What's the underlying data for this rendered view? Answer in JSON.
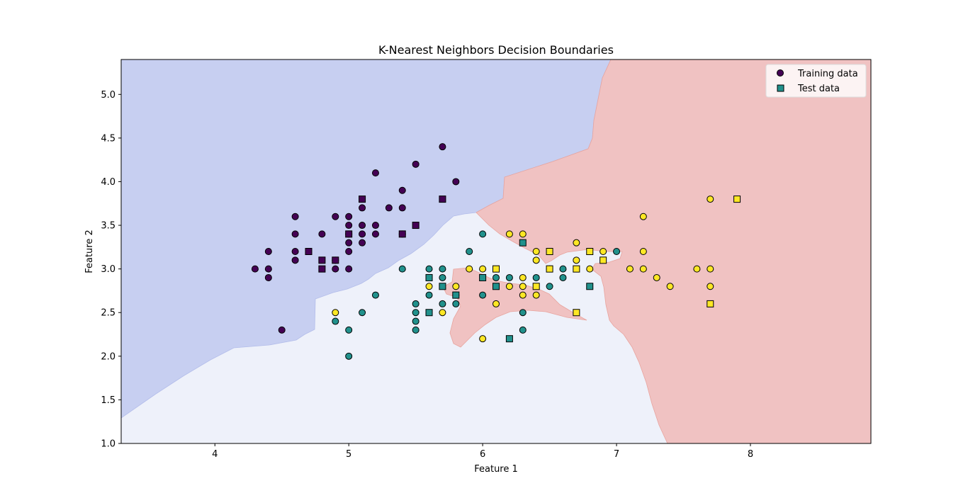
{
  "chart_data": {
    "type": "scatter",
    "title": "K-Nearest Neighbors Decision Boundaries",
    "xlabel": "Feature 1",
    "ylabel": "Feature 2",
    "xlim": [
      3.3,
      8.9
    ],
    "ylim": [
      1.0,
      5.4
    ],
    "xticks": [
      "4",
      "5",
      "6",
      "7",
      "8"
    ],
    "yticks": [
      "1.0",
      "1.5",
      "2.0",
      "2.5",
      "3.0",
      "3.5",
      "4.0",
      "4.5",
      "5.0"
    ],
    "grid": false,
    "legend_position": "upper-right",
    "class_colors": [
      "#440154",
      "#21918c",
      "#fde725"
    ],
    "region_colors": [
      "#c7cff1",
      "#eef1fa",
      "#f0c2c2"
    ],
    "legend": [
      {
        "label": "Training data",
        "marker": "circle",
        "color": "#440154"
      },
      {
        "label": "Test data",
        "marker": "square",
        "color": "#21918c"
      }
    ],
    "series": [
      {
        "name": "Training data",
        "marker": "circle",
        "points": [
          [
            4.3,
            3.0,
            0
          ],
          [
            4.4,
            3.2,
            0
          ],
          [
            4.4,
            3.0,
            0
          ],
          [
            4.4,
            2.9,
            0
          ],
          [
            4.5,
            2.3,
            0
          ],
          [
            4.6,
            3.6,
            0
          ],
          [
            4.6,
            3.4,
            0
          ],
          [
            4.6,
            3.2,
            0
          ],
          [
            4.6,
            3.1,
            0
          ],
          [
            4.8,
            3.4,
            0
          ],
          [
            4.9,
            3.6,
            0
          ],
          [
            4.9,
            3.1,
            0
          ],
          [
            4.9,
            3.0,
            0
          ],
          [
            5.0,
            3.6,
            0
          ],
          [
            5.0,
            3.5,
            0
          ],
          [
            5.0,
            3.4,
            0
          ],
          [
            5.0,
            3.3,
            0
          ],
          [
            5.0,
            3.2,
            0
          ],
          [
            5.0,
            3.0,
            0
          ],
          [
            5.1,
            3.7,
            0
          ],
          [
            5.1,
            3.5,
            0
          ],
          [
            5.1,
            3.4,
            0
          ],
          [
            5.1,
            3.3,
            0
          ],
          [
            5.2,
            4.1,
            0
          ],
          [
            5.2,
            3.5,
            0
          ],
          [
            5.2,
            3.4,
            0
          ],
          [
            5.3,
            3.7,
            0
          ],
          [
            5.4,
            3.9,
            0
          ],
          [
            5.4,
            3.7,
            0
          ],
          [
            5.4,
            3.4,
            0
          ],
          [
            5.5,
            4.2,
            0
          ],
          [
            5.7,
            4.4,
            0
          ],
          [
            5.8,
            4.0,
            0
          ],
          [
            4.9,
            2.4,
            1
          ],
          [
            5.0,
            2.3,
            1
          ],
          [
            5.0,
            2.0,
            1
          ],
          [
            5.1,
            2.5,
            1
          ],
          [
            5.2,
            2.7,
            1
          ],
          [
            5.4,
            3.0,
            1
          ],
          [
            5.5,
            2.6,
            1
          ],
          [
            5.5,
            2.5,
            1
          ],
          [
            5.5,
            2.4,
            1
          ],
          [
            5.5,
            2.3,
            1
          ],
          [
            5.6,
            3.0,
            1
          ],
          [
            5.6,
            2.7,
            1
          ],
          [
            5.7,
            3.0,
            1
          ],
          [
            5.7,
            2.9,
            1
          ],
          [
            5.7,
            2.6,
            1
          ],
          [
            5.8,
            2.7,
            1
          ],
          [
            5.8,
            2.6,
            1
          ],
          [
            5.9,
            3.2,
            1
          ],
          [
            6.0,
            3.4,
            1
          ],
          [
            6.0,
            2.7,
            1
          ],
          [
            6.1,
            2.9,
            1
          ],
          [
            6.2,
            2.9,
            1
          ],
          [
            6.3,
            2.5,
            1
          ],
          [
            6.3,
            2.3,
            1
          ],
          [
            6.4,
            2.9,
            1
          ],
          [
            6.5,
            2.8,
            1
          ],
          [
            6.6,
            3.0,
            1
          ],
          [
            6.6,
            2.9,
            1
          ],
          [
            7.0,
            3.2,
            1
          ],
          [
            4.9,
            2.5,
            2
          ],
          [
            5.6,
            2.8,
            2
          ],
          [
            5.7,
            2.5,
            2
          ],
          [
            5.8,
            2.8,
            2
          ],
          [
            5.9,
            3.0,
            2
          ],
          [
            6.0,
            3.0,
            2
          ],
          [
            6.0,
            2.2,
            2
          ],
          [
            6.1,
            2.6,
            2
          ],
          [
            6.2,
            3.4,
            2
          ],
          [
            6.2,
            2.8,
            2
          ],
          [
            6.3,
            3.4,
            2
          ],
          [
            6.3,
            2.9,
            2
          ],
          [
            6.3,
            2.8,
            2
          ],
          [
            6.3,
            2.7,
            2
          ],
          [
            6.4,
            3.2,
            2
          ],
          [
            6.4,
            3.1,
            2
          ],
          [
            6.4,
            2.7,
            2
          ],
          [
            6.5,
            3.0,
            2
          ],
          [
            6.7,
            3.3,
            2
          ],
          [
            6.7,
            3.1,
            2
          ],
          [
            6.8,
            3.0,
            2
          ],
          [
            6.9,
            3.2,
            2
          ],
          [
            7.1,
            3.0,
            2
          ],
          [
            7.2,
            3.6,
            2
          ],
          [
            7.2,
            3.2,
            2
          ],
          [
            7.2,
            3.0,
            2
          ],
          [
            7.3,
            2.9,
            2
          ],
          [
            7.4,
            2.8,
            2
          ],
          [
            7.6,
            3.0,
            2
          ],
          [
            7.7,
            3.8,
            2
          ],
          [
            7.7,
            3.0,
            2
          ],
          [
            7.7,
            2.8,
            2
          ]
        ]
      },
      {
        "name": "Test data",
        "marker": "square",
        "points": [
          [
            4.7,
            3.2,
            0
          ],
          [
            4.8,
            3.1,
            0
          ],
          [
            4.8,
            3.0,
            0
          ],
          [
            4.9,
            3.1,
            0
          ],
          [
            5.0,
            3.4,
            0
          ],
          [
            5.1,
            3.8,
            0
          ],
          [
            5.4,
            3.4,
            0
          ],
          [
            5.5,
            3.5,
            0
          ],
          [
            5.7,
            3.8,
            0
          ],
          [
            5.6,
            2.9,
            1
          ],
          [
            5.6,
            2.5,
            1
          ],
          [
            5.7,
            2.8,
            1
          ],
          [
            5.8,
            2.7,
            1
          ],
          [
            6.0,
            2.9,
            1
          ],
          [
            6.1,
            2.8,
            1
          ],
          [
            6.2,
            2.2,
            1
          ],
          [
            6.3,
            3.3,
            1
          ],
          [
            6.8,
            2.8,
            1
          ],
          [
            6.1,
            3.0,
            2
          ],
          [
            6.4,
            2.8,
            2
          ],
          [
            6.5,
            3.2,
            2
          ],
          [
            6.5,
            3.0,
            2
          ],
          [
            6.7,
            3.0,
            2
          ],
          [
            6.7,
            2.5,
            2
          ],
          [
            6.8,
            3.2,
            2
          ],
          [
            6.9,
            3.1,
            2
          ],
          [
            7.7,
            2.6,
            2
          ],
          [
            7.9,
            3.8,
            2
          ]
        ]
      }
    ]
  }
}
